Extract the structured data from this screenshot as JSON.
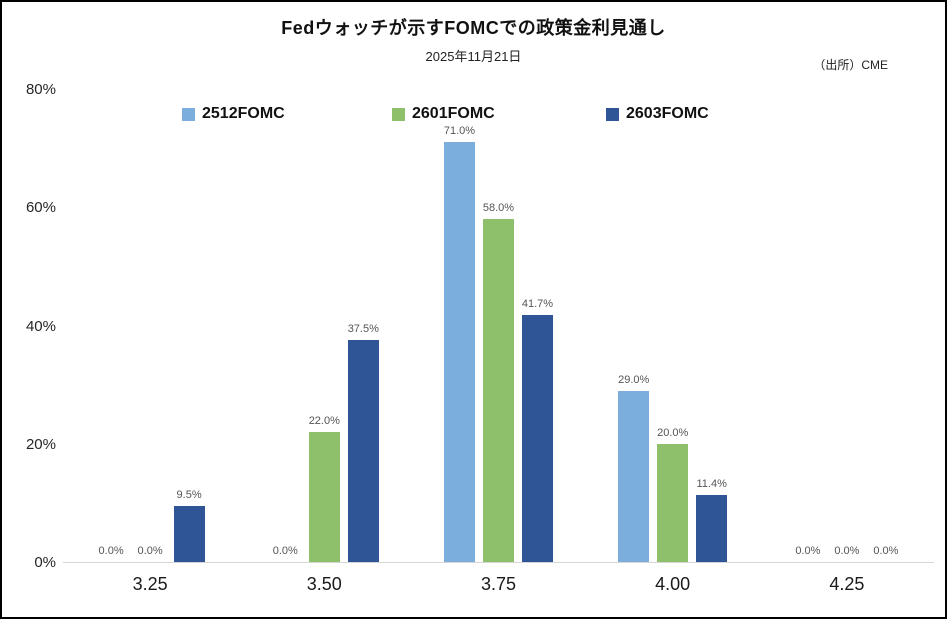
{
  "header": {
    "title": "Fedウォッチが示すFOMCでの政策金利見通し",
    "subtitle": "2025年11月21日",
    "source": "（出所）CME"
  },
  "chart_data": {
    "type": "bar",
    "title": "Fedウォッチが示すFOMCでの政策金利見通し",
    "subtitle": "2025年11月21日",
    "source": "（出所）CME",
    "categories": [
      "3.25",
      "3.50",
      "3.75",
      "4.00",
      "4.25"
    ],
    "series": [
      {
        "name": "2512FOMC",
        "color": "#7BAEDC",
        "values": [
          0.0,
          0.0,
          71.0,
          29.0,
          0.0
        ],
        "labels": [
          "0.0%",
          "0.0%",
          "71.0%",
          "29.0%",
          "0.0%"
        ]
      },
      {
        "name": "2601FOMC",
        "color": "#8EC06C",
        "values": [
          0.0,
          22.0,
          58.0,
          20.0,
          0.0
        ],
        "labels": [
          "0.0%",
          "22.0%",
          "58.0%",
          "20.0%",
          "0.0%"
        ]
      },
      {
        "name": "2603FOMC",
        "color": "#2F5596",
        "values": [
          9.5,
          37.5,
          41.7,
          11.4,
          0.0
        ],
        "labels": [
          "9.5%",
          "37.5%",
          "41.7%",
          "11.4%",
          "0.0%"
        ]
      }
    ],
    "xlabel": "",
    "ylabel": "",
    "ylim": [
      0,
      80
    ],
    "yticks": [
      "0%",
      "20%",
      "40%",
      "60%",
      "80%"
    ],
    "grid": false,
    "legend_position": "top",
    "axis_line_color": "#d6d6d6"
  }
}
